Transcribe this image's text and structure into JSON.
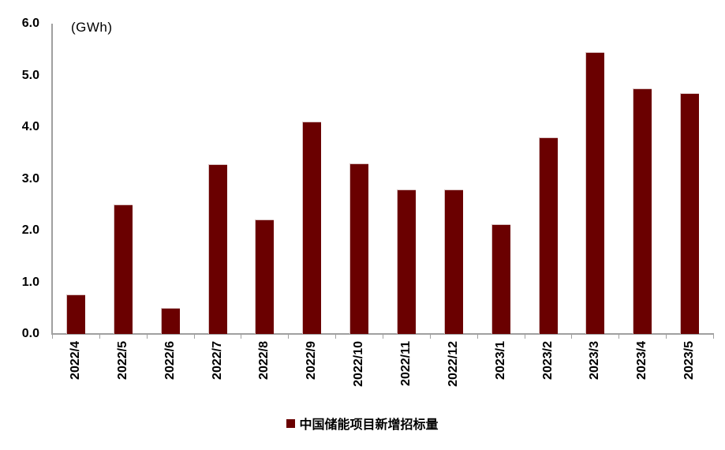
{
  "unit_label": "(GWh)",
  "chart_data": {
    "type": "bar",
    "title": "",
    "xlabel": "",
    "ylabel": "(GWh)",
    "categories": [
      "2022/4",
      "2022/5",
      "2022/6",
      "2022/7",
      "2022/8",
      "2022/9",
      "2022/10",
      "2022/11",
      "2022/12",
      "2023/1",
      "2023/2",
      "2023/3",
      "2023/4",
      "2023/5"
    ],
    "values": [
      0.77,
      2.5,
      0.51,
      3.28,
      2.21,
      4.1,
      3.3,
      2.8,
      2.8,
      2.13,
      3.8,
      5.45,
      4.75,
      4.65
    ],
    "ylim": [
      0,
      6
    ],
    "ytick_step": 1.0,
    "ytick_labels": [
      "0.0",
      "1.0",
      "2.0",
      "3.0",
      "4.0",
      "5.0",
      "6.0"
    ],
    "grid": false,
    "legend": [
      "中国储能项目新增招标量"
    ],
    "legend_position": "bottom",
    "bar_color": "#6a0000",
    "axis_color": "#a0a0a0"
  }
}
